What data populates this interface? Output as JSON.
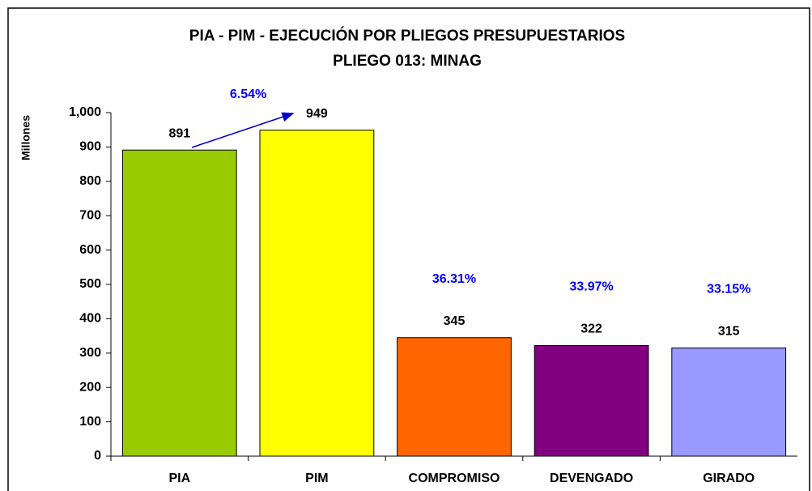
{
  "chart_data": {
    "type": "bar",
    "title": "PIA - PIM - EJECUCIÓN POR PLIEGOS PRESUPUESTARIOS",
    "subtitle": "PLIEGO 013: MINAG",
    "y_label": "Millones",
    "categories": [
      "PIA",
      "PIM",
      "COMPROMISO",
      "DEVENGADO",
      "GIRADO"
    ],
    "values": [
      891,
      949,
      345,
      322,
      315
    ],
    "colors": [
      "#99cc00",
      "#ffff00",
      "#ff6600",
      "#800080",
      "#9999ff"
    ],
    "annotations": [
      "6.54%",
      "36.31%",
      "33.97%",
      "33.15%"
    ],
    "ylim": [
      0,
      1000
    ],
    "yticks": [
      0,
      100,
      200,
      300,
      400,
      500,
      600,
      700,
      800,
      900,
      {
        "value": 1000,
        "label": "1,000"
      }
    ],
    "grid": false
  }
}
